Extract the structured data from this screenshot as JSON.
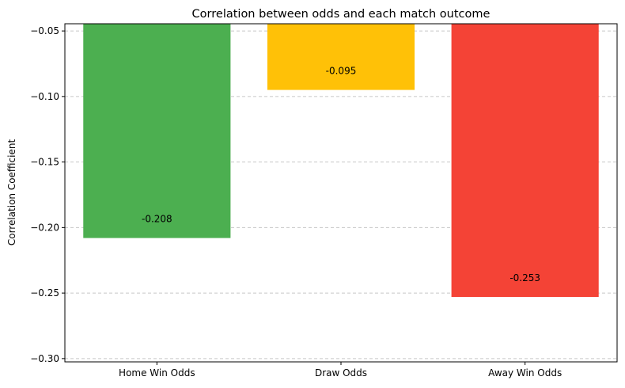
{
  "chart_data": {
    "type": "bar",
    "title": "Correlation between odds and each match outcome",
    "xlabel": "",
    "ylabel": "Correlation Coefficient",
    "categories": [
      "Home Win Odds",
      "Draw Odds",
      "Away Win Odds"
    ],
    "values": [
      -0.208,
      -0.095,
      -0.253
    ],
    "value_labels": [
      "-0.208",
      "-0.095",
      "-0.253"
    ],
    "colors": [
      "#4caf50",
      "#ffc107",
      "#f44336"
    ],
    "ylim": [
      -0.3025,
      -0.0445
    ],
    "yticks": [
      -0.05,
      -0.1,
      -0.15,
      -0.2,
      -0.25,
      -0.3
    ],
    "ytick_labels": [
      "−0.05",
      "−0.10",
      "−0.15",
      "−0.20",
      "−0.25",
      "−0.30"
    ],
    "grid": "y-dashed",
    "legend": "none"
  }
}
